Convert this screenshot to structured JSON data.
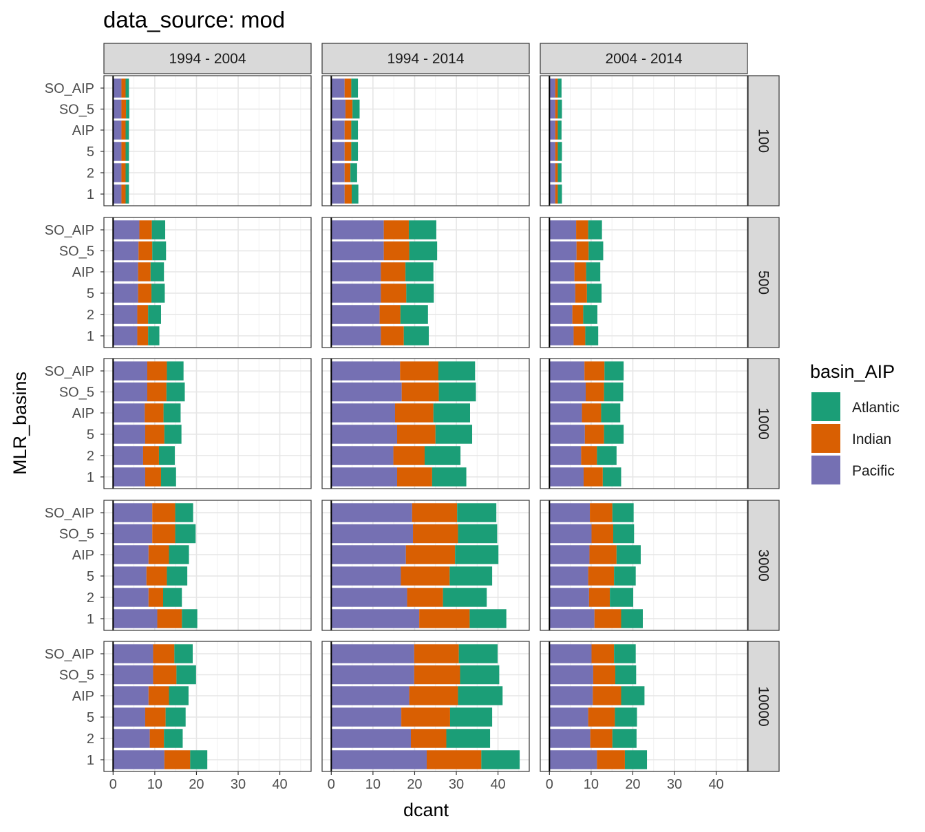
{
  "chart_data": {
    "type": "bar",
    "orientation": "horizontal",
    "stacked": true,
    "title": "data_source: mod",
    "xlabel": "dcant",
    "ylabel": "MLR_basins",
    "xlim": [
      -2.2,
      47.5
    ],
    "x_ticks": [
      "0",
      "10",
      "20",
      "30",
      "40"
    ],
    "categories": [
      "1",
      "2",
      "5",
      "AIP",
      "SO_5",
      "SO_AIP"
    ],
    "column_facets": [
      "1994 - 2004",
      "1994 - 2014",
      "2004 - 2014"
    ],
    "row_facets": [
      "100",
      "500",
      "1000",
      "3000",
      "10000"
    ],
    "grid": true,
    "legend": {
      "title": "basin_AIP",
      "position": "right",
      "items": [
        {
          "name": "Atlantic",
          "color": "#1B9E77"
        },
        {
          "name": "Indian",
          "color": "#D95F02"
        },
        {
          "name": "Pacific",
          "color": "#7570B3"
        }
      ]
    },
    "stack_order_left_to_right": [
      "Pacific",
      "Indian",
      "Atlantic"
    ],
    "panels": [
      {
        "row": "100",
        "col": "1994 - 2004",
        "Pacific": [
          2.0,
          2.0,
          2.0,
          2.0,
          2.0,
          2.0
        ],
        "Indian": [
          1.0,
          1.0,
          1.0,
          1.0,
          1.1,
          1.0
        ],
        "Atlantic": [
          0.8,
          0.8,
          0.8,
          0.8,
          0.8,
          0.8
        ]
      },
      {
        "row": "100",
        "col": "1994 - 2014",
        "Pacific": [
          3.2,
          3.2,
          3.2,
          3.2,
          3.4,
          3.2
        ],
        "Indian": [
          1.7,
          1.4,
          1.6,
          1.6,
          1.7,
          1.6
        ],
        "Atlantic": [
          1.6,
          1.6,
          1.6,
          1.6,
          1.7,
          1.6
        ]
      },
      {
        "row": "100",
        "col": "2004 - 2014",
        "Pacific": [
          1.4,
          1.4,
          1.4,
          1.4,
          1.4,
          1.4
        ],
        "Indian": [
          0.6,
          0.6,
          0.6,
          0.6,
          0.6,
          0.6
        ],
        "Atlantic": [
          1.0,
          0.9,
          1.0,
          0.9,
          1.0,
          0.9
        ]
      },
      {
        "row": "500",
        "col": "1994 - 2004",
        "Pacific": [
          5.8,
          5.8,
          6.0,
          6.0,
          6.1,
          6.3
        ],
        "Indian": [
          2.6,
          2.6,
          3.2,
          3.0,
          3.3,
          3.0
        ],
        "Atlantic": [
          2.7,
          3.1,
          3.2,
          3.2,
          3.3,
          3.2
        ]
      },
      {
        "row": "500",
        "col": "1994 - 2014",
        "Pacific": [
          11.9,
          11.6,
          11.9,
          11.9,
          12.6,
          12.6
        ],
        "Indian": [
          5.5,
          5.0,
          6.1,
          5.9,
          6.1,
          6.0
        ],
        "Atlantic": [
          6.0,
          6.6,
          6.6,
          6.7,
          6.7,
          6.6
        ]
      },
      {
        "row": "500",
        "col": "2004 - 2014",
        "Pacific": [
          5.8,
          5.5,
          6.2,
          6.0,
          6.5,
          6.4
        ],
        "Indian": [
          2.8,
          2.6,
          2.8,
          2.8,
          2.9,
          2.9
        ],
        "Atlantic": [
          3.1,
          3.4,
          3.5,
          3.4,
          3.5,
          3.3
        ]
      },
      {
        "row": "1000",
        "col": "1994 - 2004",
        "Pacific": [
          7.7,
          7.2,
          7.7,
          7.6,
          8.2,
          8.2
        ],
        "Indian": [
          3.8,
          3.8,
          4.6,
          4.5,
          4.6,
          4.7
        ],
        "Atlantic": [
          3.6,
          3.8,
          4.1,
          4.1,
          4.4,
          4.0
        ]
      },
      {
        "row": "1000",
        "col": "1994 - 2014",
        "Pacific": [
          15.8,
          14.9,
          15.8,
          15.3,
          16.9,
          16.5
        ],
        "Indian": [
          8.4,
          7.5,
          9.2,
          9.2,
          8.9,
          9.2
        ],
        "Atlantic": [
          8.2,
          8.6,
          8.8,
          8.8,
          8.9,
          8.8
        ]
      },
      {
        "row": "1000",
        "col": "2004 - 2014",
        "Pacific": [
          8.2,
          7.6,
          8.5,
          7.8,
          8.7,
          8.4
        ],
        "Indian": [
          4.6,
          3.8,
          4.6,
          4.6,
          4.4,
          4.8
        ],
        "Atlantic": [
          4.4,
          4.7,
          4.7,
          4.6,
          4.6,
          4.6
        ]
      },
      {
        "row": "3000",
        "col": "1994 - 2004",
        "Pacific": [
          10.6,
          8.5,
          8.0,
          8.5,
          9.4,
          9.4
        ],
        "Indian": [
          5.9,
          3.5,
          4.9,
          4.9,
          5.5,
          5.5
        ],
        "Atlantic": [
          3.7,
          4.5,
          4.9,
          4.8,
          4.9,
          4.3
        ]
      },
      {
        "row": "3000",
        "col": "1994 - 2014",
        "Pacific": [
          21.1,
          18.2,
          16.7,
          17.9,
          19.6,
          19.4
        ],
        "Indian": [
          12.1,
          8.6,
          11.7,
          11.8,
          10.8,
          10.8
        ],
        "Atlantic": [
          8.8,
          10.5,
          10.2,
          10.4,
          9.4,
          9.4
        ]
      },
      {
        "row": "3000",
        "col": "2004 - 2014",
        "Pacific": [
          10.8,
          9.5,
          9.3,
          9.6,
          10.1,
          9.7
        ],
        "Indian": [
          6.4,
          5.0,
          6.2,
          6.5,
          5.2,
          5.4
        ],
        "Atlantic": [
          5.2,
          5.6,
          5.2,
          5.8,
          5.0,
          5.1
        ]
      },
      {
        "row": "10000",
        "col": "1994 - 2004",
        "Pacific": [
          12.3,
          8.8,
          7.7,
          8.5,
          9.6,
          9.6
        ],
        "Indian": [
          6.2,
          3.4,
          4.9,
          4.9,
          5.6,
          5.1
        ],
        "Atlantic": [
          4.1,
          4.5,
          4.8,
          4.7,
          4.7,
          4.4
        ]
      },
      {
        "row": "10000",
        "col": "1994 - 2014",
        "Pacific": [
          22.9,
          19.1,
          16.8,
          18.7,
          19.9,
          19.9
        ],
        "Indian": [
          13.1,
          8.5,
          11.7,
          11.7,
          11.0,
          10.7
        ],
        "Atlantic": [
          9.2,
          10.5,
          10.1,
          10.7,
          9.4,
          9.3
        ]
      },
      {
        "row": "10000",
        "col": "2004 - 2014",
        "Pacific": [
          11.4,
          9.8,
          9.3,
          10.4,
          10.5,
          10.1
        ],
        "Indian": [
          6.7,
          5.3,
          6.4,
          6.8,
          5.3,
          5.4
        ],
        "Atlantic": [
          5.3,
          5.8,
          5.3,
          5.6,
          5.0,
          5.2
        ]
      }
    ]
  }
}
